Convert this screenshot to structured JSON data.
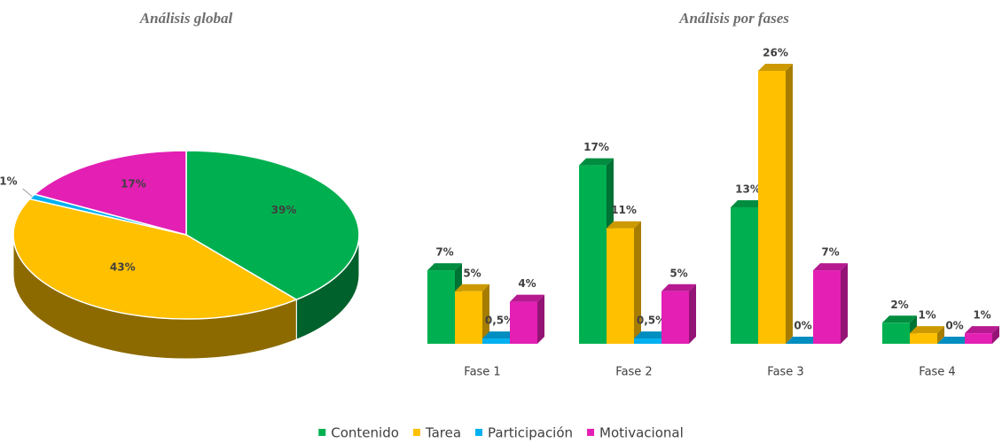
{
  "chart_data": [
    {
      "type": "pie",
      "title": "Análisis global",
      "categories": [
        "Contenido",
        "Tarea",
        "Participación",
        "Motivacional"
      ],
      "values": [
        39,
        43,
        1,
        17
      ],
      "value_labels": [
        "39%",
        "43%",
        "1%",
        "17%"
      ],
      "colors": [
        "#00b050",
        "#ffc000",
        "#00b0f0",
        "#e31fb4"
      ]
    },
    {
      "type": "bar",
      "title": "Análisis por fases",
      "categories": [
        "Fase 1",
        "Fase 2",
        "Fase 3",
        "Fase 4"
      ],
      "series": [
        {
          "name": "Contenido",
          "color": "#00b050",
          "values": [
            7,
            17,
            13,
            2
          ],
          "value_labels": [
            "7%",
            "17%",
            "13%",
            "2%"
          ]
        },
        {
          "name": "Tarea",
          "color": "#ffc000",
          "values": [
            5,
            11,
            26,
            1
          ],
          "value_labels": [
            "5%",
            "11%",
            "26%",
            "1%"
          ]
        },
        {
          "name": "Participación",
          "color": "#00b0f0",
          "values": [
            0.5,
            0.5,
            0,
            0
          ],
          "value_labels": [
            "0,5%",
            "0,5%",
            "0%",
            "0%"
          ]
        },
        {
          "name": "Motivacional",
          "color": "#e31fb4",
          "values": [
            4,
            5,
            7,
            1
          ],
          "value_labels": [
            "4%",
            "5%",
            "7%",
            "1%"
          ]
        }
      ],
      "legend": "bottom"
    }
  ]
}
